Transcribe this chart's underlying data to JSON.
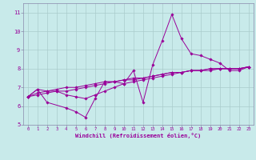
{
  "xlabel": "Windchill (Refroidissement éolien,°C)",
  "bg_color": "#c8eaea",
  "line_color": "#990099",
  "grid_color": "#aacccc",
  "spine_color": "#8888aa",
  "xlim": [
    -0.5,
    23.5
  ],
  "ylim": [
    5,
    11.5
  ],
  "yticks": [
    5,
    6,
    7,
    8,
    9,
    10,
    11
  ],
  "xticks": [
    0,
    1,
    2,
    3,
    4,
    5,
    6,
    7,
    8,
    9,
    10,
    11,
    12,
    13,
    14,
    15,
    16,
    17,
    18,
    19,
    20,
    21,
    22,
    23
  ],
  "series": [
    [
      6.5,
      6.9,
      6.2,
      null,
      5.9,
      5.7,
      5.4,
      6.4,
      7.3,
      7.3,
      7.2,
      7.9,
      6.2,
      8.2,
      9.5,
      10.9,
      9.6,
      8.8,
      8.7,
      8.5,
      8.3,
      7.9,
      7.9,
      8.1
    ],
    [
      6.5,
      6.9,
      6.8,
      6.8,
      6.6,
      6.5,
      6.4,
      6.6,
      6.8,
      7.0,
      7.2,
      7.3,
      7.4,
      7.5,
      7.6,
      7.7,
      7.8,
      7.9,
      7.9,
      8.0,
      8.0,
      8.0,
      8.0,
      8.1
    ],
    [
      6.5,
      6.6,
      6.7,
      6.8,
      6.8,
      6.9,
      7.0,
      7.1,
      7.2,
      7.3,
      7.4,
      7.5,
      7.5,
      7.6,
      7.7,
      7.8,
      7.8,
      7.9,
      7.9,
      8.0,
      8.0,
      8.0,
      8.0,
      8.1
    ],
    [
      6.5,
      6.7,
      6.8,
      6.9,
      7.0,
      7.0,
      7.1,
      7.2,
      7.3,
      7.3,
      7.4,
      7.4,
      7.5,
      7.6,
      7.7,
      7.8,
      7.8,
      7.9,
      7.9,
      7.9,
      8.0,
      8.0,
      8.0,
      8.1
    ]
  ]
}
